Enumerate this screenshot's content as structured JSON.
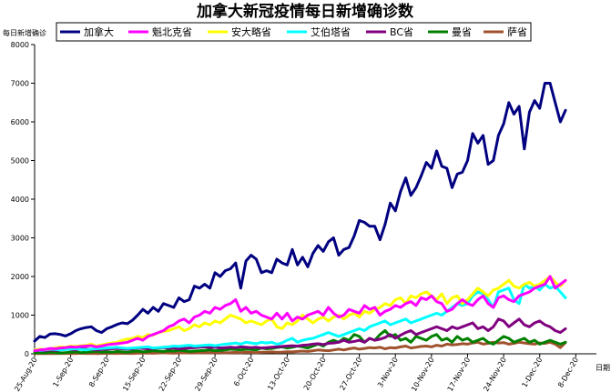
{
  "chart_data": {
    "type": "line",
    "title": "加拿大新冠疫情每日新增确诊数",
    "ylabel": "每日新增确诊",
    "xlabel": "日期",
    "ylim": [
      0,
      8000
    ],
    "yticks": [
      0,
      1000,
      2000,
      3000,
      4000,
      5000,
      6000,
      7000,
      8000
    ],
    "grid": false,
    "legend_position": "top",
    "x_tick_labels": [
      "25-Aug-20",
      "1-Sep-20",
      "8-Sep-20",
      "15-Sep-20",
      "22-Sep-20",
      "29-Sep-20",
      "6-Oct-20",
      "13-Oct-20",
      "20-Oct-20",
      "27-Oct-20",
      "3-Nov-20",
      "10-Nov-20",
      "17-Nov-20",
      "24-Nov-20",
      "1-Dec-20",
      "8-Dec-20"
    ],
    "x_start": "2020-08-25",
    "x_end": "2020-12-12",
    "series": [
      {
        "name": "加拿大",
        "color": "#000080",
        "values": [
          330,
          450,
          420,
          510,
          520,
          500,
          460,
          520,
          600,
          650,
          680,
          700,
          600,
          550,
          650,
          700,
          760,
          800,
          780,
          870,
          1000,
          1150,
          1050,
          1200,
          1100,
          1300,
          1250,
          1200,
          1450,
          1350,
          1400,
          1750,
          1700,
          1800,
          1700,
          2100,
          2000,
          2150,
          2200,
          2350,
          1700,
          2400,
          2550,
          2450,
          2100,
          2150,
          2100,
          2450,
          2350,
          2300,
          2700,
          2300,
          2500,
          2250,
          2600,
          2800,
          2650,
          2900,
          3000,
          2550,
          2700,
          2750,
          3050,
          3450,
          3400,
          3300,
          3300,
          2950,
          3350,
          3900,
          3700,
          4200,
          4550,
          4100,
          4300,
          4600,
          4950,
          4800,
          5250,
          4850,
          4800,
          4300,
          4650,
          4700,
          5000,
          5700,
          5450,
          5650,
          4900,
          5000,
          5650,
          5950,
          6500,
          6200,
          6400,
          5300,
          6250,
          6550,
          6350,
          7000,
          7000,
          6500,
          6000,
          6300
        ]
      },
      {
        "name": "魁北克省",
        "color": "#ff00ff",
        "values": [
          80,
          100,
          110,
          140,
          130,
          150,
          160,
          180,
          170,
          190,
          200,
          210,
          180,
          200,
          230,
          250,
          260,
          280,
          300,
          350,
          400,
          350,
          450,
          500,
          550,
          600,
          700,
          750,
          850,
          900,
          800,
          950,
          1000,
          1100,
          1050,
          1200,
          1150,
          1250,
          1300,
          1400,
          1100,
          1200,
          1050,
          1100,
          1000,
          950,
          900,
          1050,
          900,
          1050,
          850,
          950,
          900,
          1000,
          1050,
          1100,
          1000,
          1200,
          1050,
          950,
          1000,
          1150,
          1100,
          1050,
          1250,
          1150,
          1200,
          1000,
          1100,
          1150,
          1250,
          1200,
          1300,
          1350,
          1250,
          1450,
          1400,
          1500,
          1350,
          1300,
          1100,
          1150,
          1300,
          1400,
          1300,
          1250,
          1400,
          1500,
          1300,
          1200,
          1450,
          1500,
          1400,
          1350,
          1500,
          1550,
          1600,
          1700,
          1750,
          1800,
          2000,
          1700,
          1800,
          1900
        ]
      },
      {
        "name": "安大略省",
        "color": "#ffff00",
        "values": [
          100,
          120,
          110,
          130,
          150,
          180,
          170,
          200,
          190,
          210,
          220,
          250,
          200,
          230,
          260,
          280,
          300,
          350,
          380,
          400,
          450,
          420,
          500,
          480,
          550,
          580,
          600,
          650,
          700,
          600,
          650,
          750,
          700,
          800,
          750,
          850,
          800,
          900,
          1000,
          950,
          900,
          800,
          850,
          800,
          750,
          850,
          900,
          700,
          650,
          800,
          750,
          850,
          1000,
          900,
          800,
          900,
          950,
          850,
          950,
          1000,
          900,
          1000,
          1050,
          950,
          1100,
          1050,
          1150,
          1200,
          1300,
          1250,
          1400,
          1450,
          1300,
          1500,
          1450,
          1550,
          1600,
          1500,
          1400,
          1550,
          1300,
          1450,
          1500,
          1300,
          1400,
          1550,
          1700,
          1600,
          1500,
          1650,
          1700,
          1800,
          1900,
          1750,
          1700,
          1800,
          1850,
          1750,
          1800,
          1900,
          2000,
          1850,
          1750,
          1900
        ]
      },
      {
        "name": "艾伯塔省",
        "color": "#00ffff",
        "values": [
          100,
          90,
          100,
          120,
          110,
          100,
          110,
          120,
          130,
          110,
          100,
          120,
          130,
          140,
          150,
          160,
          170,
          150,
          140,
          150,
          160,
          170,
          180,
          150,
          160,
          170,
          180,
          200,
          190,
          210,
          220,
          200,
          210,
          220,
          230,
          210,
          230,
          250,
          260,
          280,
          250,
          300,
          280,
          260,
          300,
          280,
          300,
          250,
          280,
          350,
          400,
          300,
          350,
          380,
          400,
          450,
          500,
          550,
          500,
          450,
          500,
          550,
          600,
          650,
          600,
          700,
          750,
          800,
          850,
          750,
          800,
          850,
          900,
          800,
          850,
          900,
          950,
          1000,
          1050,
          1000,
          1100,
          1200,
          1300,
          1250,
          1300,
          1500,
          1600,
          1550,
          1400,
          1200,
          1600,
          1650,
          1700,
          1400,
          1300,
          1800,
          1700,
          1750,
          1650,
          1800,
          1700,
          1750,
          1600,
          1450
        ]
      },
      {
        "name": "BC省",
        "color": "#800080",
        "values": [
          80,
          90,
          80,
          100,
          90,
          100,
          120,
          110,
          100,
          130,
          120,
          110,
          100,
          110,
          120,
          130,
          140,
          130,
          120,
          130,
          150,
          140,
          130,
          140,
          150,
          160,
          140,
          150,
          130,
          140,
          150,
          160,
          170,
          180,
          160,
          170,
          150,
          160,
          170,
          160,
          180,
          170,
          160,
          170,
          150,
          160,
          170,
          180,
          190,
          200,
          210,
          200,
          220,
          230,
          250,
          260,
          240,
          270,
          280,
          300,
          350,
          300,
          320,
          350,
          300,
          400,
          350,
          380,
          420,
          500,
          400,
          480,
          550,
          600,
          500,
          550,
          600,
          650,
          700,
          650,
          600,
          700,
          650,
          700,
          750,
          800,
          650,
          700,
          600,
          700,
          900,
          850,
          700,
          800,
          900,
          750,
          700,
          800,
          850,
          750,
          700,
          600,
          550,
          650
        ]
      },
      {
        "name": "曼省",
        "color": "#008000",
        "values": [
          20,
          30,
          20,
          40,
          30,
          20,
          30,
          40,
          50,
          30,
          40,
          50,
          60,
          40,
          50,
          40,
          60,
          50,
          40,
          60,
          70,
          50,
          60,
          80,
          70,
          60,
          80,
          70,
          90,
          80,
          60,
          70,
          80,
          90,
          100,
          80,
          90,
          100,
          120,
          110,
          100,
          120,
          110,
          100,
          150,
          130,
          140,
          160,
          180,
          150,
          170,
          200,
          180,
          150,
          200,
          250,
          200,
          300,
          350,
          300,
          400,
          350,
          500,
          450,
          300,
          400,
          350,
          500,
          600,
          450,
          500,
          350,
          400,
          300,
          450,
          400,
          350,
          450,
          500,
          350,
          400,
          300,
          450,
          350,
          400,
          300,
          350,
          400,
          300,
          250,
          350,
          450,
          400,
          300,
          350,
          400,
          300,
          350,
          250,
          300,
          350,
          300,
          250,
          300
        ]
      },
      {
        "name": "萨省",
        "color": "#a0522d",
        "values": [
          5,
          10,
          5,
          10,
          8,
          10,
          12,
          8,
          10,
          15,
          10,
          12,
          8,
          10,
          15,
          12,
          10,
          15,
          12,
          10,
          15,
          20,
          18,
          15,
          20,
          25,
          20,
          18,
          20,
          25,
          22,
          20,
          25,
          30,
          25,
          30,
          28,
          25,
          30,
          35,
          30,
          40,
          35,
          30,
          40,
          45,
          50,
          40,
          45,
          55,
          50,
          60,
          70,
          60,
          80,
          100,
          90,
          80,
          100,
          120,
          100,
          130,
          150,
          120,
          140,
          160,
          150,
          170,
          130,
          160,
          150,
          180,
          200,
          150,
          170,
          190,
          200,
          180,
          220,
          200,
          250,
          230,
          240,
          260,
          250,
          280,
          300,
          250,
          270,
          300,
          280,
          290,
          250,
          270,
          300,
          280,
          260,
          250,
          280,
          270,
          300,
          250,
          160,
          290
        ]
      }
    ]
  }
}
